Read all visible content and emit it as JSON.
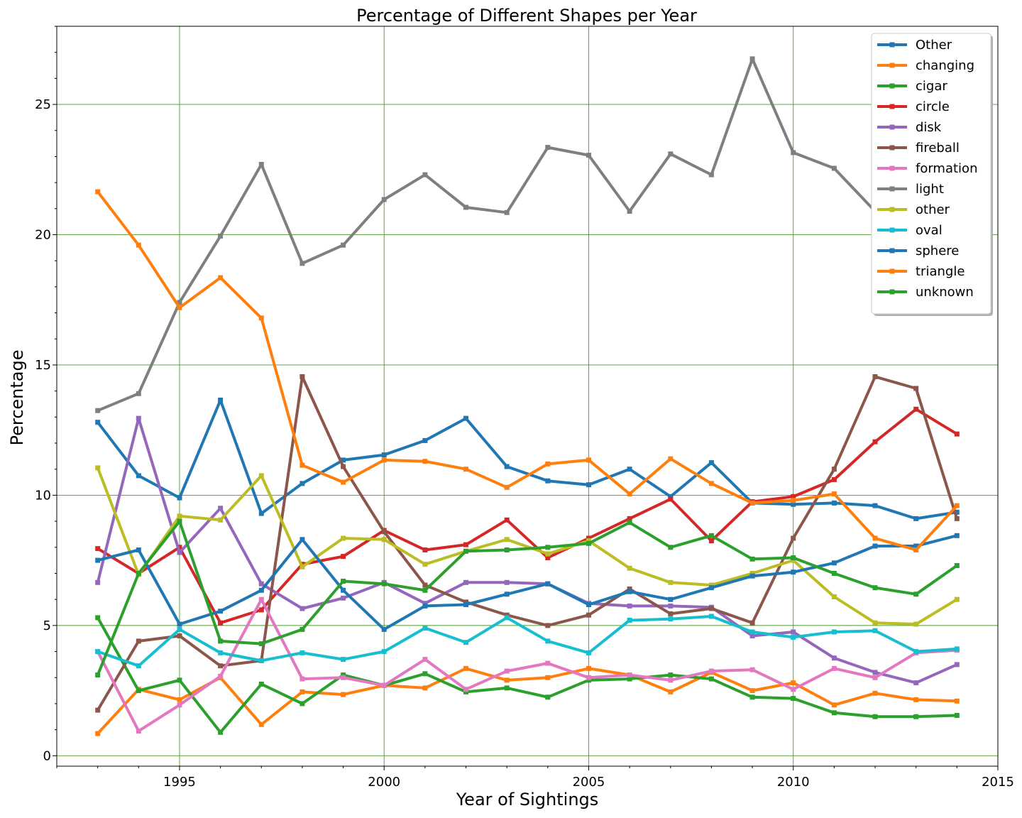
{
  "chart_data": {
    "type": "line",
    "title": "Percentage of Different Shapes per Year",
    "xlabel": "Year of Sightings",
    "ylabel": "Percentage",
    "xlim": [
      1992,
      2015
    ],
    "ylim": [
      -0.4,
      28.0
    ],
    "xticks": [
      1995,
      2000,
      2005,
      2010,
      2015
    ],
    "yticks": [
      0,
      5,
      10,
      15,
      20,
      25
    ],
    "grid": true,
    "legend_position": "top-right",
    "x": [
      1993,
      1994,
      1995,
      1996,
      1997,
      1998,
      1999,
      2000,
      2001,
      2002,
      2003,
      2004,
      2005,
      2006,
      2007,
      2008,
      2009,
      2010,
      2011,
      2012,
      2013,
      2014
    ],
    "series": [
      {
        "name": "Other",
        "color": "#1f77b4",
        "values": [
          12.8,
          10.75,
          9.9,
          13.65,
          9.3,
          10.45,
          11.35,
          11.55,
          12.1,
          12.95,
          11.1,
          10.55,
          10.4,
          11.0,
          9.95,
          11.25,
          9.7,
          9.65,
          9.7,
          9.6,
          9.1,
          9.35
        ]
      },
      {
        "name": "changing",
        "color": "#ff7f0e",
        "values": [
          0.85,
          2.55,
          2.15,
          3.0,
          1.2,
          2.45,
          2.35,
          2.7,
          2.6,
          3.35,
          2.9,
          3.0,
          3.35,
          3.1,
          2.45,
          3.2,
          2.5,
          2.8,
          1.95,
          2.4,
          2.15,
          2.1
        ]
      },
      {
        "name": "cigar",
        "color": "#2ca02c",
        "values": [
          5.3,
          2.5,
          2.9,
          0.9,
          2.75,
          2.0,
          3.1,
          2.7,
          3.15,
          2.45,
          2.6,
          2.25,
          2.9,
          2.95,
          3.1,
          2.95,
          2.25,
          2.2,
          1.65,
          1.5,
          1.5,
          1.55
        ]
      },
      {
        "name": "circle",
        "color": "#d62728",
        "values": [
          7.95,
          7.0,
          8.0,
          5.1,
          5.6,
          7.35,
          7.65,
          8.65,
          7.9,
          8.1,
          9.05,
          7.6,
          8.35,
          9.1,
          9.85,
          8.25,
          9.75,
          9.95,
          10.6,
          12.05,
          13.3,
          12.35
        ]
      },
      {
        "name": "disk",
        "color": "#9467bd",
        "values": [
          6.65,
          12.95,
          7.8,
          9.5,
          6.6,
          5.65,
          6.05,
          6.65,
          5.85,
          6.65,
          6.65,
          6.6,
          5.85,
          5.75,
          5.75,
          5.7,
          4.6,
          4.75,
          3.75,
          3.2,
          2.8,
          3.5
        ]
      },
      {
        "name": "fireball",
        "color": "#8c564b",
        "values": [
          1.75,
          4.4,
          4.6,
          3.45,
          3.65,
          14.55,
          11.1,
          8.6,
          6.55,
          5.9,
          5.4,
          5.0,
          5.4,
          6.4,
          5.45,
          5.65,
          5.1,
          8.35,
          11.0,
          14.55,
          14.1,
          9.1
        ]
      },
      {
        "name": "formation",
        "color": "#e377c2",
        "values": [
          4.0,
          0.95,
          1.95,
          3.05,
          6.0,
          2.95,
          3.0,
          2.7,
          3.7,
          2.55,
          3.25,
          3.55,
          3.0,
          3.1,
          2.9,
          3.25,
          3.3,
          2.55,
          3.35,
          3.0,
          3.95,
          4.05
        ]
      },
      {
        "name": "light",
        "color": "#7f7f7f",
        "values": [
          13.25,
          13.9,
          17.4,
          19.95,
          22.7,
          18.9,
          19.6,
          21.35,
          22.3,
          21.05,
          20.85,
          23.35,
          23.05,
          20.9,
          23.1,
          22.3,
          26.75,
          23.15,
          22.55,
          20.9,
          20.9,
          20.9
        ]
      },
      {
        "name": "other",
        "color": "#bcbd22",
        "values": [
          11.05,
          6.95,
          9.2,
          9.05,
          10.75,
          7.25,
          8.35,
          8.3,
          7.35,
          7.85,
          8.3,
          7.75,
          8.25,
          7.2,
          6.65,
          6.55,
          7.0,
          7.5,
          6.1,
          5.1,
          5.05,
          6.0
        ]
      },
      {
        "name": "oval",
        "color": "#17becf",
        "values": [
          4.0,
          3.45,
          4.85,
          3.95,
          3.65,
          3.95,
          3.7,
          4.0,
          4.9,
          4.35,
          5.3,
          4.4,
          3.95,
          5.2,
          5.25,
          5.35,
          4.75,
          4.55,
          4.75,
          4.8,
          4.0,
          4.1
        ]
      },
      {
        "name": "sphere",
        "color": "#1f77b4",
        "values": [
          7.5,
          7.9,
          5.05,
          5.55,
          6.35,
          8.3,
          6.35,
          4.85,
          5.75,
          5.8,
          6.2,
          6.6,
          5.8,
          6.3,
          6.0,
          6.45,
          6.9,
          7.05,
          7.4,
          8.05,
          8.05,
          8.45
        ]
      },
      {
        "name": "triangle",
        "color": "#ff7f0e",
        "values": [
          21.65,
          19.6,
          17.2,
          18.35,
          16.8,
          11.15,
          10.5,
          11.35,
          11.3,
          11.0,
          10.3,
          11.2,
          11.35,
          10.05,
          11.4,
          10.45,
          9.7,
          9.8,
          10.05,
          8.35,
          7.9,
          9.6
        ]
      },
      {
        "name": "unknown",
        "color": "#2ca02c",
        "values": [
          3.1,
          7.0,
          9.0,
          4.4,
          4.3,
          4.85,
          6.7,
          6.6,
          6.35,
          7.85,
          7.9,
          8.0,
          8.15,
          8.95,
          8.0,
          8.45,
          7.55,
          7.6,
          7.0,
          6.45,
          6.2,
          7.3
        ]
      }
    ]
  }
}
